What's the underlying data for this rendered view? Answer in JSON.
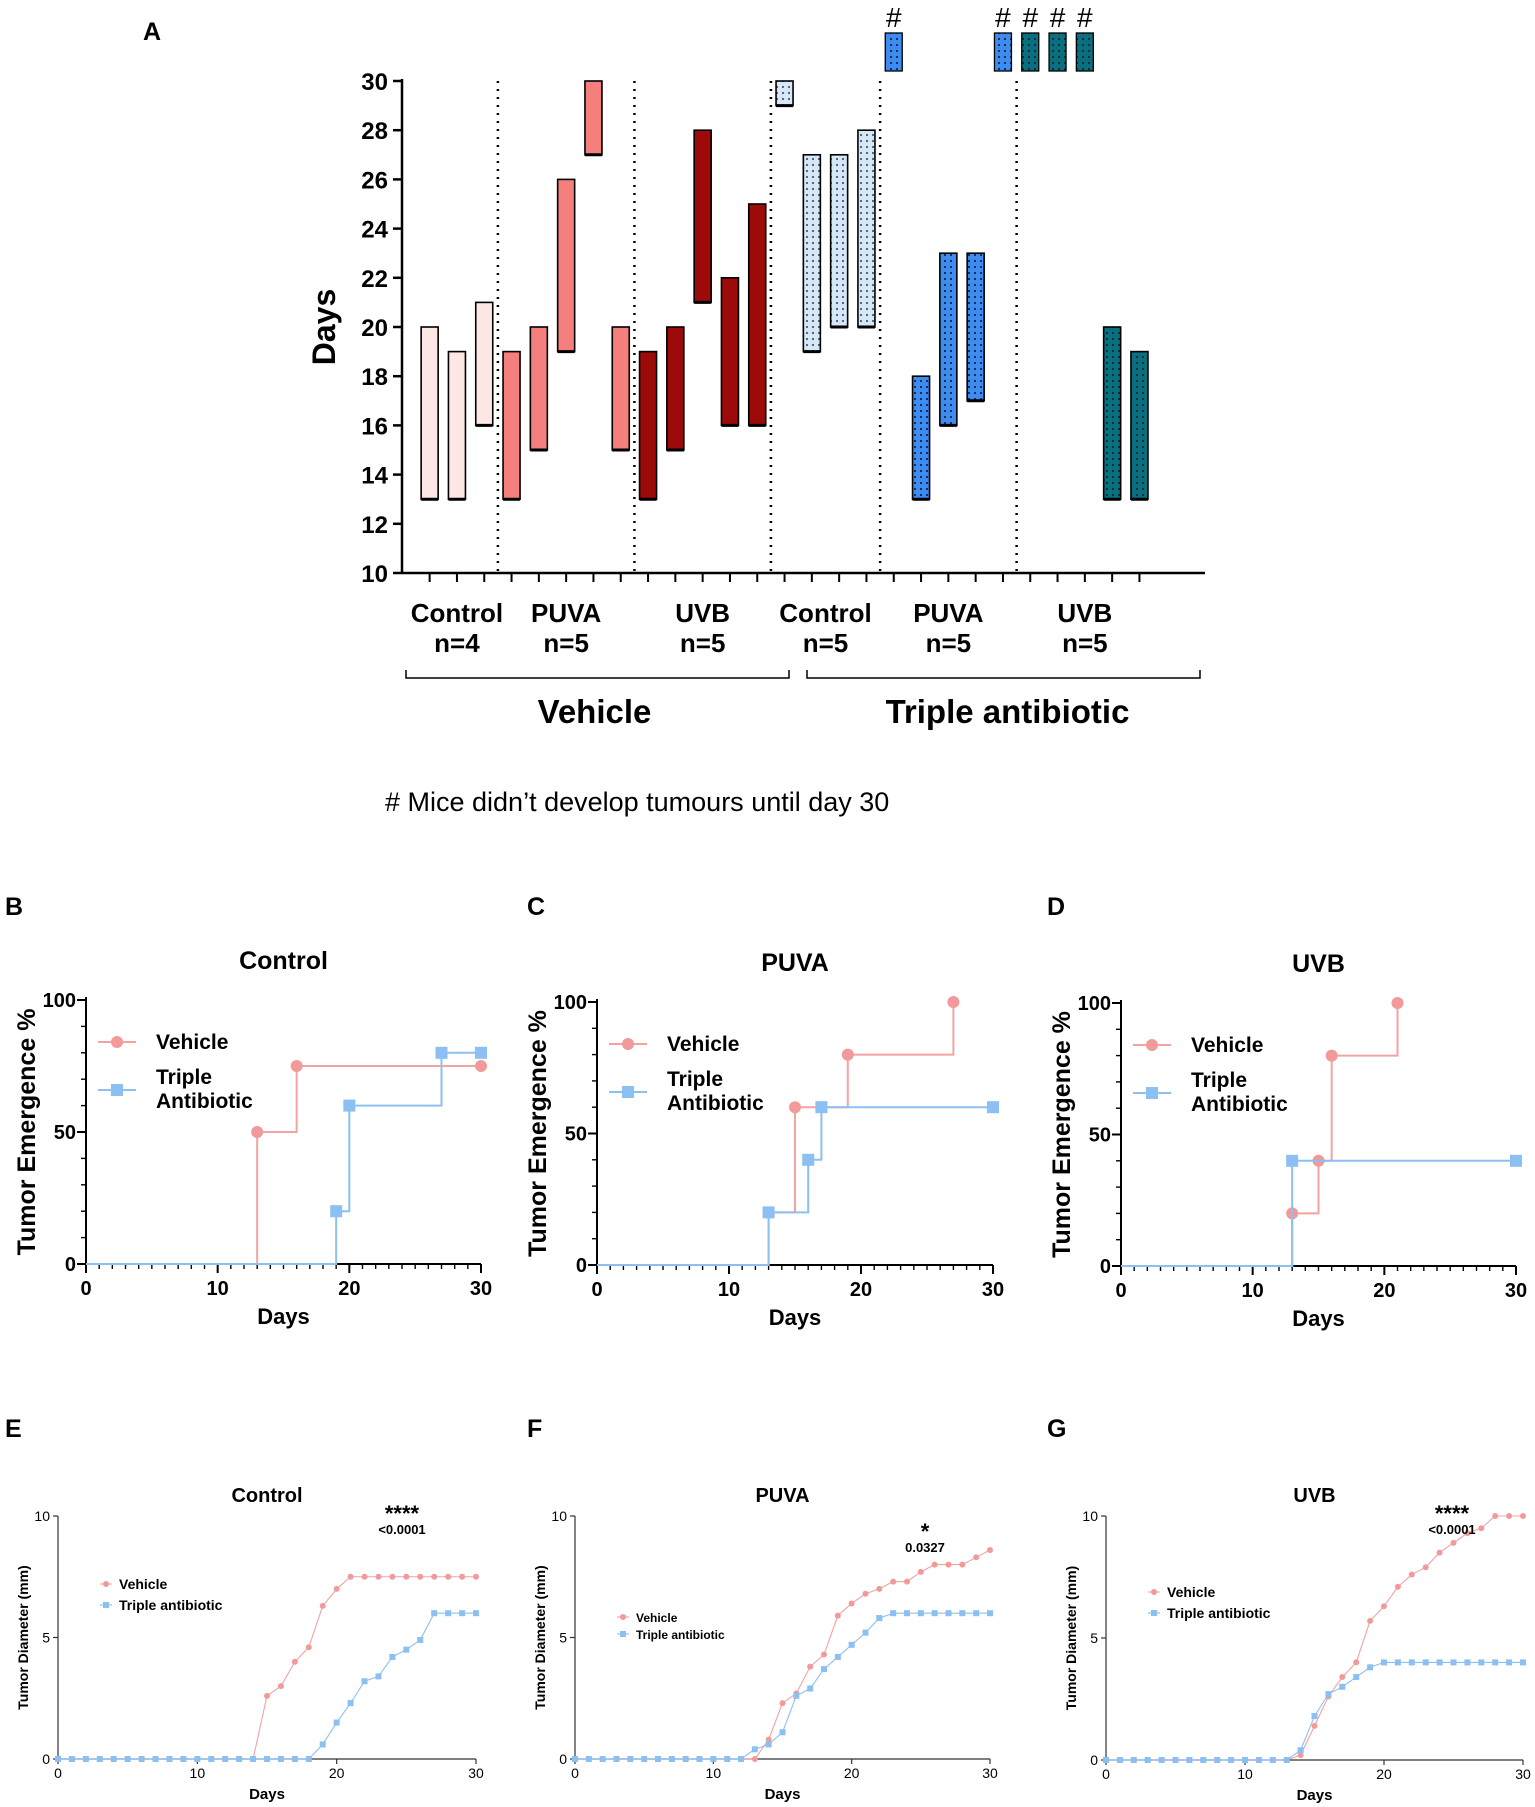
{
  "footnote": "# Mice didn’t develop tumours until day 30",
  "colors": {
    "vehicle_control": "#fce7e5",
    "vehicle_puva": "#f47f7d",
    "vehicle_uvb": "#9d0a0a",
    "ab_control": "#d6e7f7",
    "ab_puva": "#3f8cf0",
    "ab_uvb": "#0a6f7f",
    "vehicle_line": "#f4a2a2",
    "vehicle_marker": "#f29a9a",
    "ab_line": "#8dc0ef",
    "ab_marker": "#8cbff2"
  },
  "chart_data": [
    {
      "panel": "A",
      "type": "bar",
      "subtype": "floating-range",
      "title": "",
      "ylabel": "Days",
      "ylim": [
        10,
        30
      ],
      "yticks": [
        "10",
        "12",
        "14",
        "16",
        "18",
        "20",
        "22",
        "24",
        "26",
        "28",
        "30"
      ],
      "groups": [
        {
          "label": "Control",
          "n": "n=4",
          "treatment": "Vehicle",
          "color": "vehicle_control",
          "dotted": false,
          "bars": [
            {
              "low": 13,
              "high": 20
            },
            {
              "low": 13,
              "high": 19
            },
            {
              "low": 16,
              "high": 21
            }
          ]
        },
        {
          "label": "PUVA",
          "n": "n=5",
          "treatment": "Vehicle",
          "color": "vehicle_puva",
          "dotted": false,
          "bars": [
            {
              "low": 13,
              "high": 19
            },
            {
              "low": 15,
              "high": 20
            },
            {
              "low": 19,
              "high": 26
            },
            {
              "low": 27,
              "high": 30
            },
            {
              "low": 15,
              "high": 20
            }
          ]
        },
        {
          "label": "UVB",
          "n": "n=5",
          "treatment": "Vehicle",
          "color": "vehicle_uvb",
          "dotted": false,
          "bars": [
            {
              "low": 13,
              "high": 19
            },
            {
              "low": 15,
              "high": 20
            },
            {
              "low": 21,
              "high": 28
            },
            {
              "low": 16,
              "high": 22
            },
            {
              "low": 16,
              "high": 25
            }
          ]
        },
        {
          "label": "Control",
          "n": "n=5",
          "treatment": "Triple antibiotic",
          "color": "ab_control",
          "dotted": true,
          "bars": [
            {
              "low": 29,
              "high": 30
            },
            {
              "low": 19,
              "high": 27
            },
            {
              "low": 20,
              "high": 27
            },
            {
              "low": 20,
              "high": 28
            }
          ]
        },
        {
          "label": "PUVA",
          "n": "n=5",
          "treatment": "Triple antibiotic",
          "color": "ab_puva",
          "dotted": true,
          "bars": [
            {
              "low": 30,
              "high": 30,
              "none": true
            },
            {
              "low": 13,
              "high": 18
            },
            {
              "low": 16,
              "high": 23
            },
            {
              "low": 17,
              "high": 23
            },
            {
              "low": 30,
              "high": 30,
              "none": true
            }
          ]
        },
        {
          "label": "UVB",
          "n": "n=5",
          "treatment": "Triple antibiotic",
          "color": "ab_uvb",
          "dotted": true,
          "bars": [
            {
              "low": 30,
              "high": 30,
              "none": true
            },
            {
              "low": 30,
              "high": 30,
              "none": true
            },
            {
              "low": 30,
              "high": 30,
              "none": true
            },
            {
              "low": 13,
              "high": 20
            },
            {
              "low": 13,
              "high": 19
            }
          ]
        }
      ],
      "no_tumour_marker": "#",
      "brackets": [
        "Vehicle",
        "Triple antibiotic"
      ]
    },
    {
      "panel": "B",
      "type": "line",
      "subtype": "step",
      "title": "Control",
      "xlabel": "Days",
      "ylabel": "Tumor Emergence %",
      "xlim": [
        0,
        30
      ],
      "ylim": [
        0,
        100
      ],
      "xticks": [
        "0",
        "10",
        "20",
        "30"
      ],
      "yticks": [
        "0",
        "50",
        "100"
      ],
      "legend": [
        "Vehicle",
        "Triple Antibiotic"
      ],
      "series": [
        {
          "name": "Vehicle",
          "x": [
            0,
            13,
            16,
            30
          ],
          "y": [
            0,
            50,
            75,
            75
          ]
        },
        {
          "name": "Triple Antibiotic",
          "x": [
            0,
            19,
            20,
            27,
            30
          ],
          "y": [
            0,
            20,
            60,
            80,
            80
          ]
        }
      ]
    },
    {
      "panel": "C",
      "type": "line",
      "subtype": "step",
      "title": "PUVA",
      "xlabel": "Days",
      "ylabel": "Tumor Emergence %",
      "xlim": [
        0,
        30
      ],
      "ylim": [
        0,
        100
      ],
      "xticks": [
        "0",
        "10",
        "20",
        "30"
      ],
      "yticks": [
        "0",
        "50",
        "100"
      ],
      "legend": [
        "Vehicle",
        "Triple Antibiotic"
      ],
      "series": [
        {
          "name": "Vehicle",
          "x": [
            0,
            13,
            15,
            19,
            27
          ],
          "y": [
            0,
            20,
            60,
            80,
            100
          ]
        },
        {
          "name": "Triple Antibiotic",
          "x": [
            0,
            13,
            16,
            17,
            30
          ],
          "y": [
            0,
            20,
            40,
            60,
            60
          ]
        }
      ]
    },
    {
      "panel": "D",
      "type": "line",
      "subtype": "step",
      "title": "UVB",
      "xlabel": "Days",
      "ylabel": "Tumor Emergence %",
      "xlim": [
        0,
        30
      ],
      "ylim": [
        0,
        100
      ],
      "xticks": [
        "0",
        "10",
        "20",
        "30"
      ],
      "yticks": [
        "0",
        "50",
        "100"
      ],
      "legend": [
        "Vehicle",
        "Triple Antibiotic"
      ],
      "series": [
        {
          "name": "Vehicle",
          "x": [
            0,
            13,
            15,
            16,
            21
          ],
          "y": [
            0,
            20,
            40,
            80,
            100
          ]
        },
        {
          "name": "Triple Antibiotic",
          "x": [
            0,
            13,
            30
          ],
          "y": [
            0,
            40,
            40
          ]
        }
      ]
    },
    {
      "panel": "E",
      "type": "line",
      "title": "Control",
      "xlabel": "Days",
      "ylabel": "Tumor Diameter (mm)",
      "xlim": [
        0,
        30
      ],
      "ylim": [
        0,
        10
      ],
      "xticks": [
        "0",
        "10",
        "20",
        "30"
      ],
      "yticks": [
        "0",
        "5",
        "10"
      ],
      "legend": [
        "Vehicle",
        "Triple antibiotic"
      ],
      "significance": "****",
      "pvalue": "<0.0001",
      "x": [
        0,
        1,
        2,
        3,
        4,
        5,
        6,
        7,
        8,
        9,
        10,
        11,
        12,
        13,
        14,
        15,
        16,
        17,
        18,
        19,
        20,
        21,
        22,
        23,
        24,
        25,
        26,
        27,
        28,
        29,
        30
      ],
      "series": [
        {
          "name": "Vehicle",
          "values": [
            0,
            0,
            0,
            0,
            0,
            0,
            0,
            0,
            0,
            0,
            0,
            0,
            0,
            0,
            0,
            2.6,
            3.0,
            4.0,
            4.6,
            6.3,
            7.0,
            7.5,
            7.5,
            7.5,
            7.5,
            7.5,
            7.5,
            7.5,
            7.5,
            7.5,
            7.5
          ]
        },
        {
          "name": "Triple antibiotic",
          "values": [
            0,
            0,
            0,
            0,
            0,
            0,
            0,
            0,
            0,
            0,
            0,
            0,
            0,
            0,
            0,
            0,
            0,
            0,
            0,
            0.6,
            1.5,
            2.3,
            3.2,
            3.4,
            4.2,
            4.5,
            4.9,
            6.0,
            6.0,
            6.0,
            6.0
          ]
        }
      ]
    },
    {
      "panel": "F",
      "type": "line",
      "title": "PUVA",
      "xlabel": "Days",
      "ylabel": "Tumor Diameter (mm)",
      "xlim": [
        0,
        30
      ],
      "ylim": [
        0,
        10
      ],
      "xticks": [
        "0",
        "10",
        "20",
        "30"
      ],
      "yticks": [
        "0",
        "5",
        "10"
      ],
      "legend": [
        "Vehicle",
        "Triple antibiotic"
      ],
      "significance": "*",
      "pvalue": "0.0327",
      "x": [
        0,
        1,
        2,
        3,
        4,
        5,
        6,
        7,
        8,
        9,
        10,
        11,
        12,
        13,
        14,
        15,
        16,
        17,
        18,
        19,
        20,
        21,
        22,
        23,
        24,
        25,
        26,
        27,
        28,
        29,
        30
      ],
      "series": [
        {
          "name": "Vehicle",
          "values": [
            0,
            0,
            0,
            0,
            0,
            0,
            0,
            0,
            0,
            0,
            0,
            0,
            0,
            0,
            0.8,
            2.3,
            2.7,
            3.8,
            4.3,
            5.9,
            6.4,
            6.8,
            7.0,
            7.3,
            7.3,
            7.7,
            8.0,
            8.0,
            8.0,
            8.3,
            8.6
          ]
        },
        {
          "name": "Triple antibiotic",
          "values": [
            0,
            0,
            0,
            0,
            0,
            0,
            0,
            0,
            0,
            0,
            0,
            0,
            0,
            0.4,
            0.6,
            1.1,
            2.6,
            2.9,
            3.7,
            4.2,
            4.7,
            5.2,
            5.8,
            6.0,
            6.0,
            6.0,
            6.0,
            6.0,
            6.0,
            6.0,
            6.0
          ]
        }
      ]
    },
    {
      "panel": "G",
      "type": "line",
      "title": "UVB",
      "xlabel": "Days",
      "ylabel": "Tumor Diameter (mm)",
      "xlim": [
        0,
        30
      ],
      "ylim": [
        0,
        10
      ],
      "xticks": [
        "0",
        "10",
        "20",
        "30"
      ],
      "yticks": [
        "0",
        "5",
        "10"
      ],
      "legend": [
        "Vehicle",
        "Triple antibiotic"
      ],
      "significance": "****",
      "pvalue": "<0.0001",
      "x": [
        0,
        1,
        2,
        3,
        4,
        5,
        6,
        7,
        8,
        9,
        10,
        11,
        12,
        13,
        14,
        15,
        16,
        17,
        18,
        19,
        20,
        21,
        22,
        23,
        24,
        25,
        26,
        27,
        28,
        29,
        30
      ],
      "series": [
        {
          "name": "Vehicle",
          "values": [
            0,
            0,
            0,
            0,
            0,
            0,
            0,
            0,
            0,
            0,
            0,
            0,
            0,
            0,
            0.2,
            1.4,
            2.6,
            3.4,
            4.0,
            5.7,
            6.3,
            7.1,
            7.6,
            7.9,
            8.5,
            8.9,
            9.3,
            9.5,
            10.0,
            10.0,
            10.0
          ]
        },
        {
          "name": "Triple antibiotic",
          "values": [
            0,
            0,
            0,
            0,
            0,
            0,
            0,
            0,
            0,
            0,
            0,
            0,
            0,
            0,
            0.4,
            1.8,
            2.7,
            3.0,
            3.4,
            3.8,
            4.0,
            4.0,
            4.0,
            4.0,
            4.0,
            4.0,
            4.0,
            4.0,
            4.0,
            4.0,
            4.0
          ]
        }
      ]
    }
  ]
}
